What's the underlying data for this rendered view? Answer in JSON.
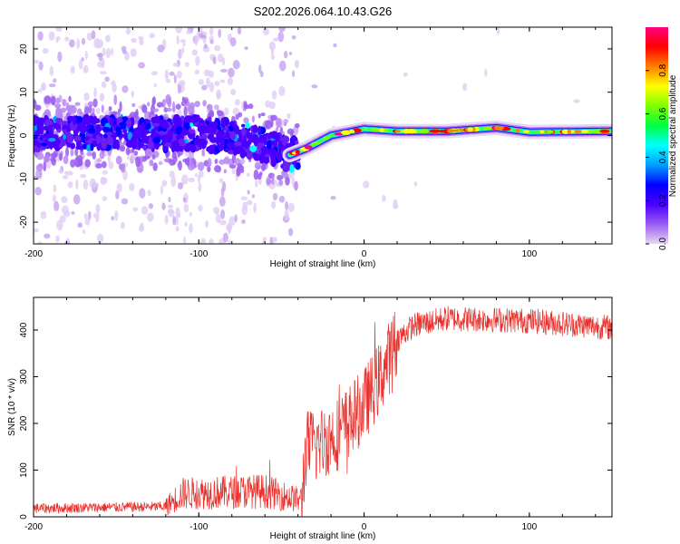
{
  "chart_data": [
    {
      "type": "heatmap",
      "title": "S202.2026.064.10.43.G26",
      "xlabel": "Height of straight line (km)",
      "ylabel": "Frequency (Hz)",
      "xlim": [
        -200,
        150
      ],
      "ylim": [
        -25,
        25
      ],
      "xticks": [
        -200,
        -100,
        0,
        100
      ],
      "xtick_labels": [
        "-200",
        "-100",
        "0",
        "100"
      ],
      "yticks": [
        -20,
        -10,
        0,
        10,
        20
      ],
      "ytick_labels": [
        "-20",
        "-10",
        "0",
        "10",
        "20"
      ],
      "colorbar": {
        "label": "Normalized spectral amplitude",
        "range": [
          0,
          1
        ],
        "ticks": [
          0,
          0.2,
          0.4,
          0.6,
          0.8
        ],
        "tick_labels": [
          "0.0",
          "0.2",
          "0.4",
          "0.6",
          "0.8"
        ],
        "colors": [
          "#e8d8f4",
          "#9a5cf0",
          "#4b00ff",
          "#0000ff",
          "#00a0ff",
          "#00ffff",
          "#00ff40",
          "#80ff00",
          "#ffff00",
          "#ff8000",
          "#ff0000",
          "#ff0080"
        ]
      },
      "ridge": [
        {
          "x": -200,
          "y": 0.5
        },
        {
          "x": -100,
          "y": 0.5
        },
        {
          "x": -70,
          "y": -1
        },
        {
          "x": -45,
          "y": -4.5
        },
        {
          "x": -35,
          "y": -3
        },
        {
          "x": -20,
          "y": 0
        },
        {
          "x": 0,
          "y": 1.5
        },
        {
          "x": 20,
          "y": 1
        },
        {
          "x": 50,
          "y": 1
        },
        {
          "x": 80,
          "y": 1.8
        },
        {
          "x": 100,
          "y": 0.8
        },
        {
          "x": 150,
          "y": 1
        }
      ]
    },
    {
      "type": "line",
      "xlabel": "Height of straight line (km)",
      "ylabel": "SNR (10 * v/v)",
      "xlim": [
        -200,
        150
      ],
      "ylim": [
        0,
        470
      ],
      "xticks": [
        -200,
        -100,
        0,
        100
      ],
      "xtick_labels": [
        "-200",
        "-100",
        "0",
        "100"
      ],
      "yticks": [
        0,
        100,
        200,
        300,
        400
      ],
      "ytick_labels": [
        "0",
        "100",
        "200",
        "300",
        "400"
      ],
      "color": "#e8302c",
      "series_outline": [
        {
          "x": -200,
          "y": 18
        },
        {
          "x": -120,
          "y": 22
        },
        {
          "x": -110,
          "y": 50
        },
        {
          "x": -60,
          "y": 55
        },
        {
          "x": -38,
          "y": 35
        },
        {
          "x": -35,
          "y": 150
        },
        {
          "x": -25,
          "y": 160
        },
        {
          "x": -15,
          "y": 180
        },
        {
          "x": 0,
          "y": 240
        },
        {
          "x": 10,
          "y": 300
        },
        {
          "x": 20,
          "y": 380
        },
        {
          "x": 30,
          "y": 410
        },
        {
          "x": 50,
          "y": 425
        },
        {
          "x": 100,
          "y": 420
        },
        {
          "x": 150,
          "y": 405
        }
      ]
    }
  ]
}
